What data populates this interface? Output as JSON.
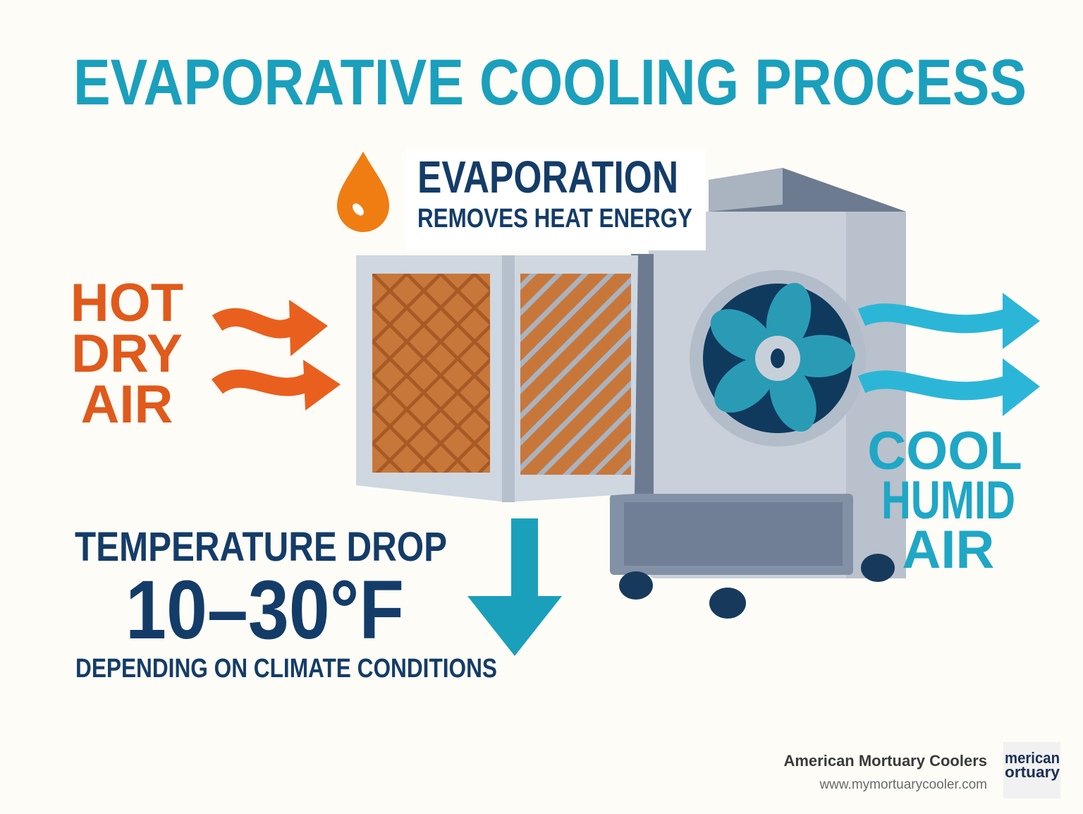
{
  "title": "EVAPORATIVE COOLING PROCESS",
  "evaporation": {
    "heading": "EVAPORATION",
    "subheading": "REMOVES HEAT ENERGY"
  },
  "hot_air": {
    "lines": [
      "HOT",
      "DRY",
      "AIR"
    ]
  },
  "cool_air": {
    "lines": [
      "COOL",
      "HUMID",
      "AIR"
    ]
  },
  "temperature": {
    "heading": "TEMPERATURE DROP",
    "range": "10–30°F",
    "note": "DEPENDING ON CLIMATE CONDITIONS"
  },
  "footer": {
    "company": "American Mortuary Coolers",
    "website": "www.mymortuarycooler.com",
    "logo_lines": [
      "merican",
      "ortuary"
    ]
  }
}
